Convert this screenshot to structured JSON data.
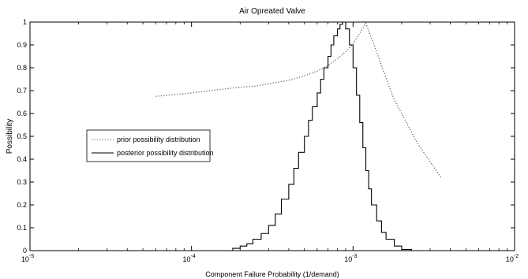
{
  "chart_data": {
    "type": "line",
    "title": "Air Opreated Valve",
    "xlabel": "Component Failure Probability (1/demand)",
    "ylabel": "Possibility",
    "xscale": "log",
    "xlim": [
      1e-05,
      0.01
    ],
    "ylim": [
      0,
      1
    ],
    "x_ticks": [
      {
        "value": 1e-05,
        "base": "10",
        "exp": "-5"
      },
      {
        "value": 0.0001,
        "base": "10",
        "exp": "-4"
      },
      {
        "value": 0.001,
        "base": "10",
        "exp": "-3"
      },
      {
        "value": 0.01,
        "base": "10",
        "exp": "-2"
      }
    ],
    "y_ticks": [
      {
        "value": 0,
        "label": "0"
      },
      {
        "value": 0.1,
        "label": "0.1"
      },
      {
        "value": 0.2,
        "label": "0.2"
      },
      {
        "value": 0.3,
        "label": "0.3"
      },
      {
        "value": 0.4,
        "label": "0.4"
      },
      {
        "value": 0.5,
        "label": "0.5"
      },
      {
        "value": 0.6,
        "label": "0.6"
      },
      {
        "value": 0.7,
        "label": "0.7"
      },
      {
        "value": 0.8,
        "label": "0.8"
      },
      {
        "value": 0.9,
        "label": "0.9"
      },
      {
        "value": 1,
        "label": "1"
      }
    ],
    "grid": false,
    "legend_position": "left-middle",
    "series": [
      {
        "name": "prior possibility distribution",
        "style": "dotted",
        "color": "#555555",
        "points": [
          [
            6e-05,
            0.675
          ],
          [
            0.0001,
            0.69
          ],
          [
            0.00015,
            0.705
          ],
          [
            0.0002,
            0.715
          ],
          [
            0.00025,
            0.72
          ],
          [
            0.0003,
            0.73
          ],
          [
            0.0004,
            0.745
          ],
          [
            0.0005,
            0.765
          ],
          [
            0.0006,
            0.785
          ],
          [
            0.0007,
            0.81
          ],
          [
            0.0008,
            0.84
          ],
          [
            0.0009,
            0.87
          ],
          [
            0.001,
            0.905
          ],
          [
            0.0011,
            0.95
          ],
          [
            0.0012,
            0.995
          ],
          [
            0.0014,
            0.87
          ],
          [
            0.0016,
            0.755
          ],
          [
            0.0018,
            0.66
          ],
          [
            0.002,
            0.6
          ],
          [
            0.0025,
            0.47
          ],
          [
            0.003,
            0.39
          ],
          [
            0.0035,
            0.32
          ]
        ]
      },
      {
        "name": "posterior possibility distribution",
        "style": "stairs",
        "color": "#000000",
        "points": [
          [
            6e-05,
            0.0
          ],
          [
            0.00017,
            0.0
          ],
          [
            0.00018,
            0.01
          ],
          [
            0.0002,
            0.02
          ],
          [
            0.00022,
            0.03
          ],
          [
            0.00024,
            0.05
          ],
          [
            0.00027,
            0.075
          ],
          [
            0.0003,
            0.11
          ],
          [
            0.00033,
            0.16
          ],
          [
            0.00036,
            0.225
          ],
          [
            0.0004,
            0.29
          ],
          [
            0.00043,
            0.36
          ],
          [
            0.00046,
            0.43
          ],
          [
            0.0005,
            0.5
          ],
          [
            0.00053,
            0.57
          ],
          [
            0.00056,
            0.63
          ],
          [
            0.0006,
            0.69
          ],
          [
            0.00063,
            0.75
          ],
          [
            0.00066,
            0.8
          ],
          [
            0.0007,
            0.85
          ],
          [
            0.00073,
            0.9
          ],
          [
            0.00076,
            0.94
          ],
          [
            0.0008,
            0.97
          ],
          [
            0.00083,
            0.99
          ],
          [
            0.00086,
            1.0
          ],
          [
            0.0009,
            0.97
          ],
          [
            0.00095,
            0.9
          ],
          [
            0.001,
            0.8
          ],
          [
            0.00105,
            0.68
          ],
          [
            0.0011,
            0.56
          ],
          [
            0.00115,
            0.45
          ],
          [
            0.0012,
            0.35
          ],
          [
            0.00125,
            0.27
          ],
          [
            0.0013,
            0.2
          ],
          [
            0.0014,
            0.13
          ],
          [
            0.0015,
            0.08
          ],
          [
            0.0016,
            0.05
          ],
          [
            0.0018,
            0.02
          ],
          [
            0.002,
            0.005
          ],
          [
            0.0023,
            0.0
          ],
          [
            0.0035,
            0.0
          ]
        ]
      }
    ]
  }
}
